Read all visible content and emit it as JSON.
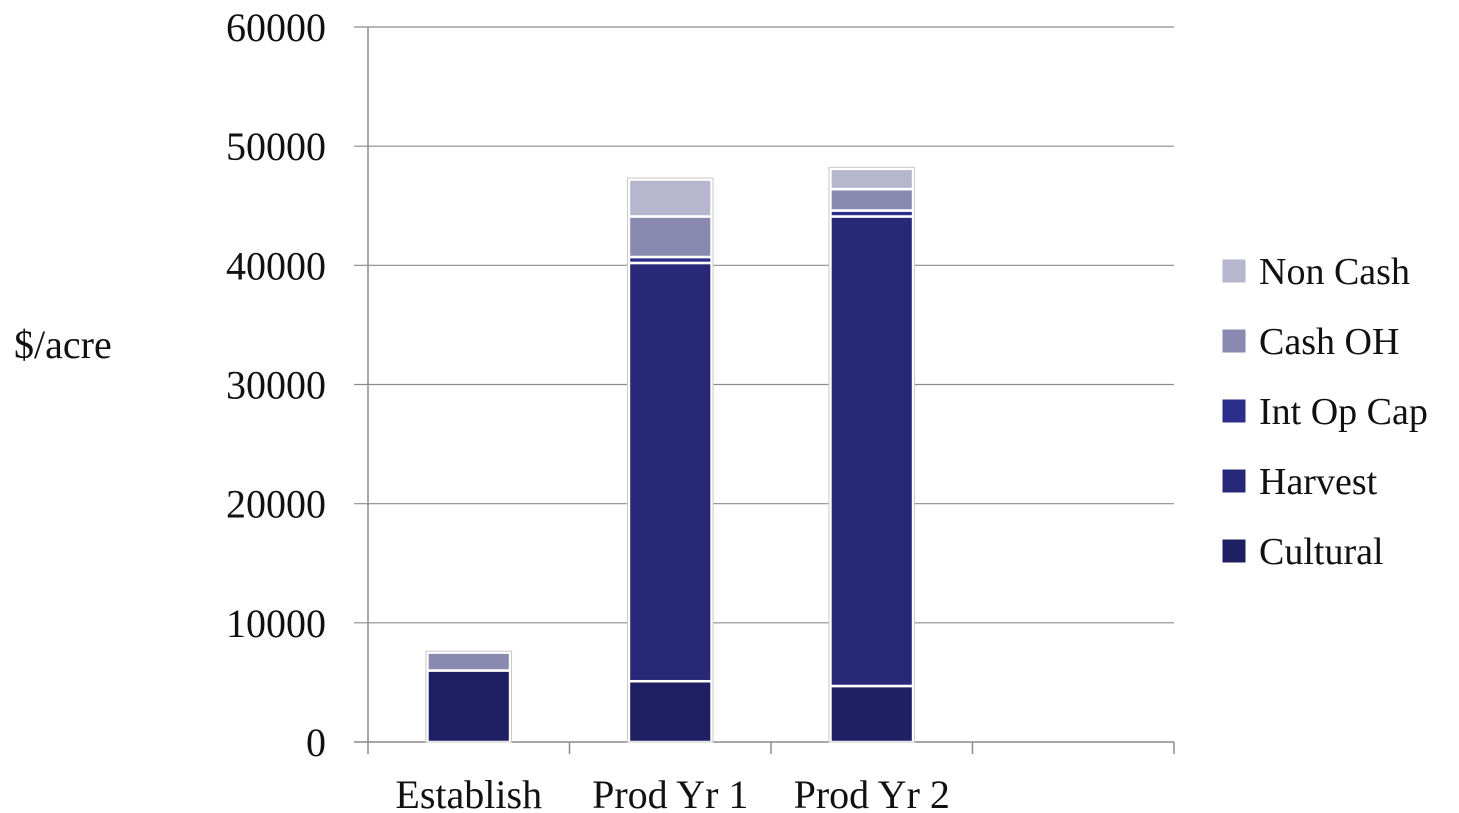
{
  "chart_data": {
    "type": "bar",
    "stacked": true,
    "title": "",
    "xlabel": "",
    "ylabel": "$/acre",
    "ylim": [
      0,
      60000
    ],
    "yticks": [
      0,
      10000,
      20000,
      30000,
      40000,
      50000,
      60000
    ],
    "ytick_labels": [
      "0",
      "10000",
      "20000",
      "30000",
      "40000",
      "50000",
      "60000"
    ],
    "categories": [
      "Establish",
      "Prod Yr 1",
      "Prod Yr 2"
    ],
    "x_slots": 4,
    "grid": true,
    "legend_position": "right",
    "series": [
      {
        "name": "Cultural",
        "color": "#1f1f63",
        "values": [
          6000,
          5100,
          4700
        ]
      },
      {
        "name": "Harvest",
        "color": "#282878",
        "values": [
          0,
          35100,
          39400
        ]
      },
      {
        "name": "Int Op Cap",
        "color": "#2d2d8c",
        "values": [
          0,
          500,
          500
        ]
      },
      {
        "name": "Cash OH",
        "color": "#8a8ab0",
        "values": [
          1500,
          3400,
          1800
        ]
      },
      {
        "name": "Non Cash",
        "color": "#b6b6cf",
        "values": [
          0,
          3100,
          1700
        ]
      }
    ]
  }
}
